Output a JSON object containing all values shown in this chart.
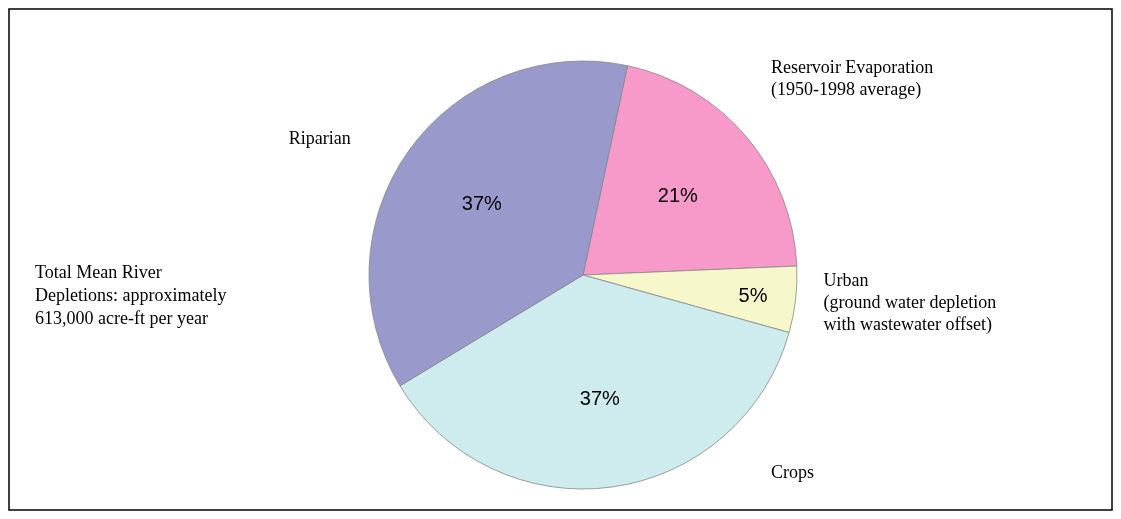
{
  "chart_data": {
    "type": "pie",
    "categories": [
      "Reservoir Evaporation\n(1950-1998 average)",
      "Urban\n(ground water depletion\nwith wastewater offset)",
      "Crops",
      "Riparian"
    ],
    "values": [
      21,
      5,
      37,
      37
    ],
    "colors": [
      "#f799c9",
      "#f7f7cc",
      "#ceebee",
      "#9999cc"
    ],
    "value_labels": [
      "21%",
      "5%",
      "37%",
      "37%"
    ],
    "annotations": [
      "Total Mean River\nDepletions: approximately\n613,000 acre-ft per year"
    ]
  }
}
